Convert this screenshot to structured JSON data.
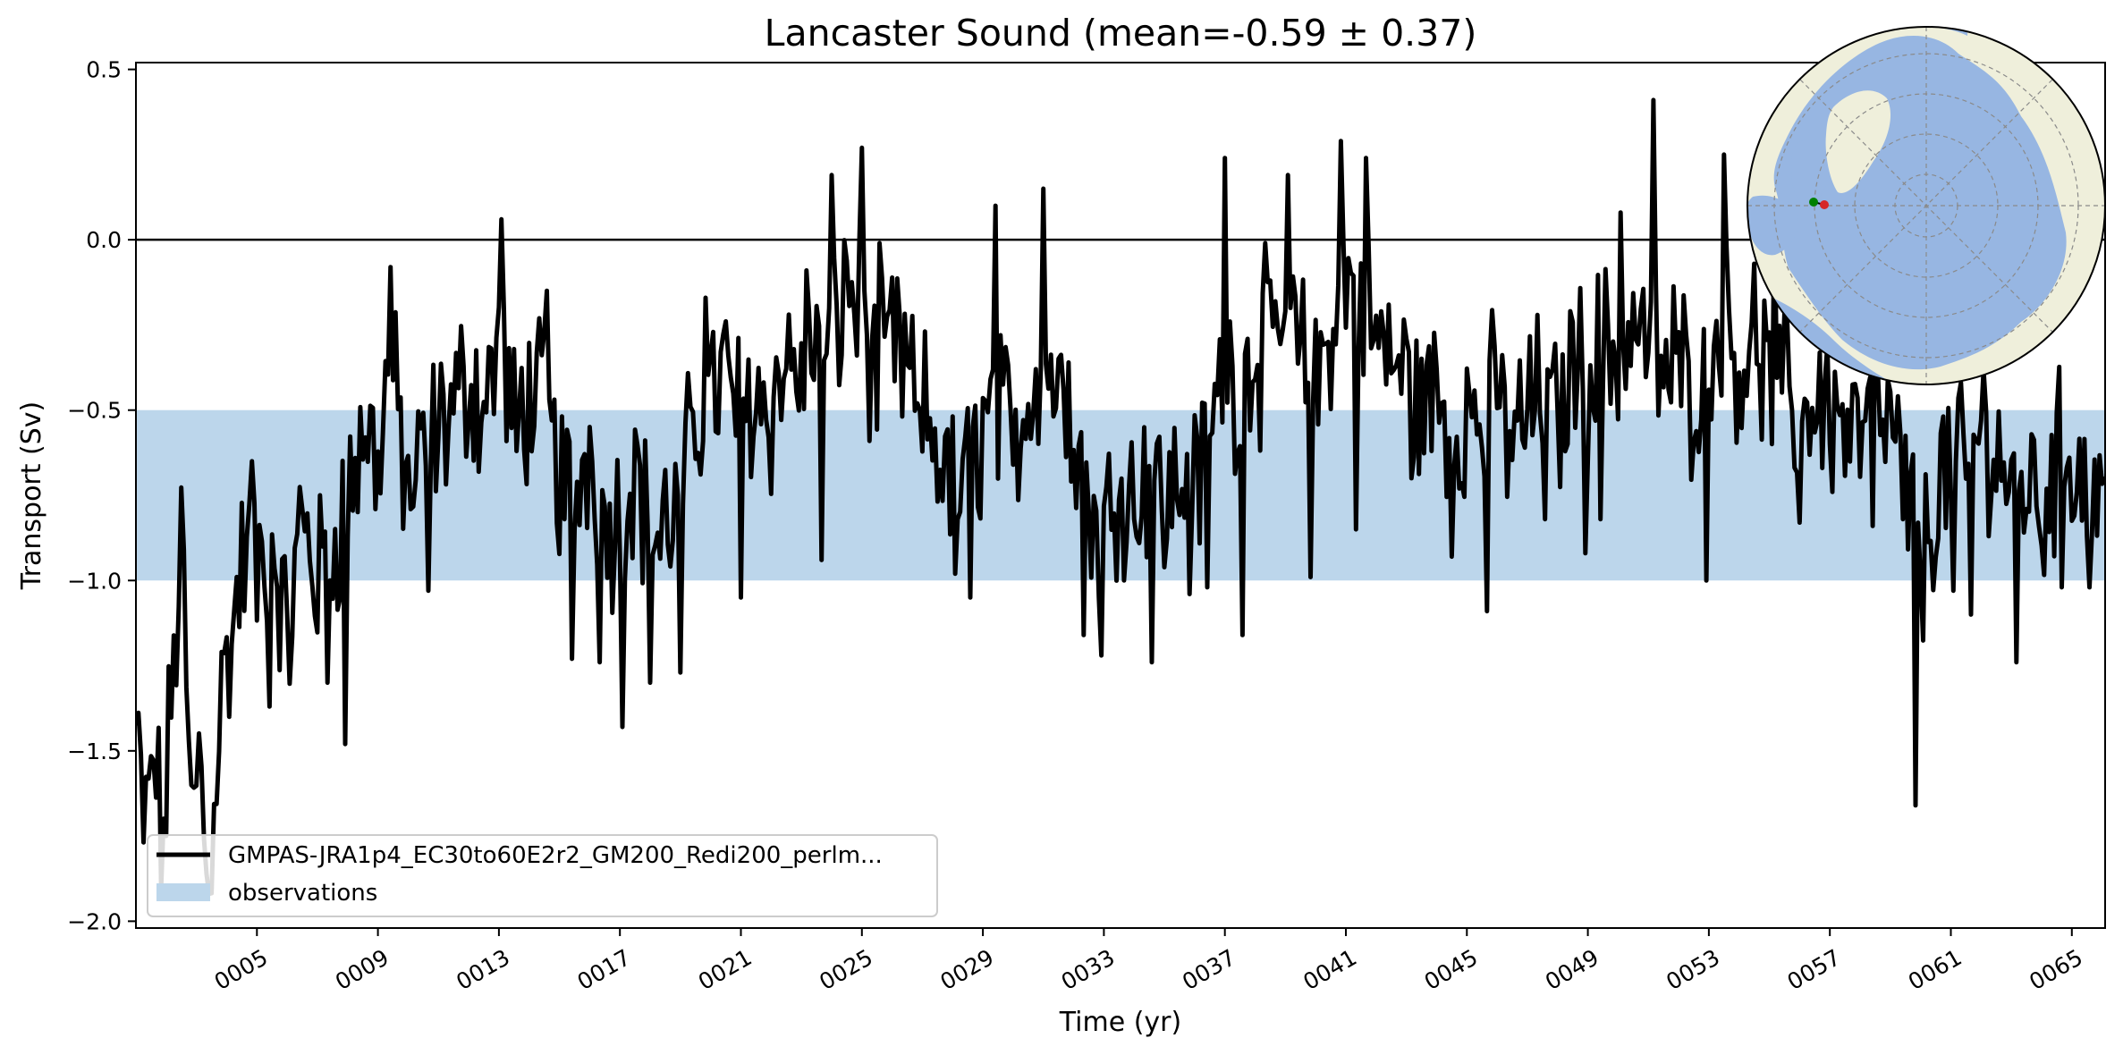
{
  "chart_data": {
    "type": "line",
    "title": "Lancaster Sound (mean=-0.59 ± 0.37)",
    "xlabel": "Time (yr)",
    "ylabel": "Transport (Sv)",
    "xlim": [
      1,
      66.1
    ],
    "ylim": [
      -2.02,
      0.52
    ],
    "x_tick_values": [
      5,
      9,
      13,
      17,
      21,
      25,
      29,
      33,
      37,
      41,
      45,
      49,
      53,
      57,
      61,
      65
    ],
    "x_tick_labels": [
      "0005",
      "0009",
      "0013",
      "0017",
      "0021",
      "0025",
      "0029",
      "0033",
      "0037",
      "0041",
      "0045",
      "0049",
      "0053",
      "0057",
      "0061",
      "0065"
    ],
    "y_ticks": [
      0.5,
      0.0,
      -0.5,
      -1.0,
      -1.5,
      -2.0
    ],
    "y_tick_labels": [
      "0.5",
      "0.0",
      "−0.5",
      "−1.0",
      "−1.5",
      "−2.0"
    ],
    "zero_line": 0.0,
    "observations_band": [
      -1.0,
      -0.5
    ],
    "legend_position": "lower-left",
    "series": [
      {
        "name": "GMPAS-JRA1p4_EC30to60E2r2_GM200_Redi200_perlm...",
        "color": "#000000",
        "anchors": [
          [
            1.0,
            -1.45
          ],
          [
            1.3,
            -1.75
          ],
          [
            1.6,
            -1.5
          ],
          [
            1.9,
            -1.8
          ],
          [
            2.2,
            -1.3
          ],
          [
            2.5,
            -0.92
          ],
          [
            2.8,
            -1.7
          ],
          [
            3.1,
            -1.5
          ],
          [
            3.4,
            -1.88
          ],
          [
            3.8,
            -1.35
          ],
          [
            4.2,
            -1.15
          ],
          [
            4.6,
            -0.9
          ],
          [
            5.0,
            -1.0
          ],
          [
            5.5,
            -0.85
          ],
          [
            6.0,
            -1.2
          ],
          [
            6.5,
            -0.8
          ],
          [
            7.0,
            -1.0
          ],
          [
            7.5,
            -0.9
          ],
          [
            8.0,
            -0.75
          ],
          [
            8.6,
            -0.55
          ],
          [
            9.0,
            -0.65
          ],
          [
            9.4,
            -0.35
          ],
          [
            10.0,
            -0.75
          ],
          [
            10.5,
            -0.65
          ],
          [
            11.0,
            -0.55
          ],
          [
            11.5,
            -0.5
          ],
          [
            12.0,
            -0.4
          ],
          [
            12.5,
            -0.5
          ],
          [
            13.0,
            -0.3
          ],
          [
            13.5,
            -0.55
          ],
          [
            14.0,
            -0.45
          ],
          [
            14.5,
            -0.5
          ],
          [
            15.0,
            -0.7
          ],
          [
            15.5,
            -0.75
          ],
          [
            16.0,
            -0.6
          ],
          [
            16.5,
            -0.85
          ],
          [
            17.0,
            -0.8
          ],
          [
            17.5,
            -0.65
          ],
          [
            18.0,
            -0.9
          ],
          [
            18.5,
            -0.85
          ],
          [
            19.0,
            -0.75
          ],
          [
            19.5,
            -0.55
          ],
          [
            20.0,
            -0.45
          ],
          [
            20.5,
            -0.4
          ],
          [
            21.0,
            -0.5
          ],
          [
            21.5,
            -0.45
          ],
          [
            22.0,
            -0.5
          ],
          [
            22.5,
            -0.35
          ],
          [
            23.0,
            -0.4
          ],
          [
            23.5,
            -0.25
          ],
          [
            24.0,
            -0.35
          ],
          [
            24.5,
            -0.1
          ],
          [
            25.0,
            -0.25
          ],
          [
            25.5,
            -0.45
          ],
          [
            26.0,
            -0.3
          ],
          [
            26.5,
            -0.4
          ],
          [
            27.0,
            -0.5
          ],
          [
            27.5,
            -0.6
          ],
          [
            28.0,
            -0.75
          ],
          [
            28.5,
            -0.7
          ],
          [
            29.0,
            -0.55
          ],
          [
            29.5,
            -0.5
          ],
          [
            30.0,
            -0.6
          ],
          [
            30.5,
            -0.45
          ],
          [
            31.0,
            -0.3
          ],
          [
            31.5,
            -0.45
          ],
          [
            32.0,
            -0.5
          ],
          [
            32.5,
            -0.8
          ],
          [
            33.0,
            -0.85
          ],
          [
            33.5,
            -0.7
          ],
          [
            34.0,
            -0.75
          ],
          [
            34.5,
            -0.65
          ],
          [
            35.0,
            -0.8
          ],
          [
            35.5,
            -0.7
          ],
          [
            36.0,
            -0.75
          ],
          [
            36.5,
            -0.6
          ],
          [
            37.0,
            -0.35
          ],
          [
            37.5,
            -0.45
          ],
          [
            38.0,
            -0.3
          ],
          [
            38.5,
            -0.4
          ],
          [
            39.0,
            -0.2
          ],
          [
            39.5,
            -0.35
          ],
          [
            40.0,
            -0.45
          ],
          [
            40.5,
            -0.25
          ],
          [
            41.0,
            -0.1
          ],
          [
            41.5,
            -0.2
          ],
          [
            42.0,
            -0.3
          ],
          [
            42.5,
            -0.35
          ],
          [
            43.0,
            -0.4
          ],
          [
            43.5,
            -0.5
          ],
          [
            44.0,
            -0.45
          ],
          [
            44.5,
            -0.55
          ],
          [
            45.0,
            -0.5
          ],
          [
            45.5,
            -0.55
          ],
          [
            46.0,
            -0.45
          ],
          [
            46.5,
            -0.6
          ],
          [
            47.0,
            -0.5
          ],
          [
            47.5,
            -0.45
          ],
          [
            48.0,
            -0.55
          ],
          [
            48.5,
            -0.35
          ],
          [
            49.0,
            -0.4
          ],
          [
            49.5,
            -0.3
          ],
          [
            50.0,
            -0.35
          ],
          [
            50.5,
            -0.25
          ],
          [
            51.0,
            -0.3
          ],
          [
            51.5,
            -0.4
          ],
          [
            52.0,
            -0.35
          ],
          [
            52.5,
            -0.45
          ],
          [
            53.0,
            -0.3
          ],
          [
            53.5,
            -0.25
          ],
          [
            54.0,
            -0.35
          ],
          [
            54.5,
            -0.3
          ],
          [
            55.0,
            -0.4
          ],
          [
            55.5,
            -0.45
          ],
          [
            56.0,
            -0.55
          ],
          [
            56.5,
            -0.45
          ],
          [
            57.0,
            -0.5
          ],
          [
            57.5,
            -0.55
          ],
          [
            58.0,
            -0.6
          ],
          [
            58.5,
            -0.5
          ],
          [
            59.0,
            -0.55
          ],
          [
            59.5,
            -0.7
          ],
          [
            60.0,
            -1.0
          ],
          [
            60.5,
            -0.75
          ],
          [
            61.0,
            -0.65
          ],
          [
            61.5,
            -0.7
          ],
          [
            62.0,
            -0.55
          ],
          [
            62.5,
            -0.6
          ],
          [
            63.0,
            -0.75
          ],
          [
            63.5,
            -0.7
          ],
          [
            64.0,
            -0.8
          ],
          [
            64.5,
            -0.65
          ],
          [
            65.0,
            -0.6
          ],
          [
            65.5,
            -0.75
          ],
          [
            66.1,
            -0.7
          ]
        ],
        "spikes": [
          [
            2.6,
            -0.91
          ],
          [
            3.3,
            -1.86
          ],
          [
            4.8,
            -0.65
          ],
          [
            5.4,
            -1.37
          ],
          [
            7.3,
            -1.3
          ],
          [
            7.9,
            -1.48
          ],
          [
            9.4,
            -0.08
          ],
          [
            10.7,
            -1.03
          ],
          [
            13.1,
            0.06
          ],
          [
            13.6,
            -0.62
          ],
          [
            14.6,
            -0.15
          ],
          [
            15.4,
            -1.23
          ],
          [
            16.3,
            -1.24
          ],
          [
            17.1,
            -1.43
          ],
          [
            18.0,
            -1.3
          ],
          [
            19.0,
            -1.27
          ],
          [
            19.8,
            -0.17
          ],
          [
            21.0,
            -1.05
          ],
          [
            23.2,
            -0.09
          ],
          [
            23.7,
            -0.94
          ],
          [
            24.0,
            0.19
          ],
          [
            25.0,
            0.27
          ],
          [
            25.6,
            -0.01
          ],
          [
            26.8,
            -0.48
          ],
          [
            28.1,
            -0.98
          ],
          [
            28.6,
            -1.05
          ],
          [
            29.4,
            0.1
          ],
          [
            30.0,
            -0.66
          ],
          [
            31.0,
            0.15
          ],
          [
            31.8,
            -0.36
          ],
          [
            32.3,
            -1.16
          ],
          [
            32.9,
            -1.22
          ],
          [
            34.0,
            -0.82
          ],
          [
            34.6,
            -1.24
          ],
          [
            35.8,
            -1.04
          ],
          [
            36.4,
            -1.02
          ],
          [
            37.0,
            0.24
          ],
          [
            37.6,
            -1.16
          ],
          [
            38.3,
            -0.01
          ],
          [
            39.1,
            0.19
          ],
          [
            39.8,
            -0.99
          ],
          [
            40.8,
            0.29
          ],
          [
            41.3,
            -0.85
          ],
          [
            41.7,
            0.24
          ],
          [
            43.2,
            -0.7
          ],
          [
            44.5,
            -0.93
          ],
          [
            45.7,
            -1.09
          ],
          [
            47.6,
            -0.82
          ],
          [
            48.9,
            -0.92
          ],
          [
            49.4,
            -0.82
          ],
          [
            50.1,
            0.08
          ],
          [
            51.2,
            0.41
          ],
          [
            52.9,
            -1.0
          ],
          [
            53.5,
            0.25
          ],
          [
            55.2,
            0.08
          ],
          [
            56.0,
            -0.83
          ],
          [
            58.4,
            -0.84
          ],
          [
            59.4,
            -0.82
          ],
          [
            59.8,
            -1.66
          ],
          [
            61.1,
            -1.03
          ],
          [
            61.7,
            -1.1
          ],
          [
            63.2,
            -1.24
          ],
          [
            64.7,
            -1.02
          ],
          [
            65.6,
            -1.02
          ]
        ]
      }
    ],
    "legend": [
      {
        "label": "GMPAS-JRA1p4_EC30to60E2r2_GM200_Redi200_perlm...",
        "kind": "line",
        "color": "#000000"
      },
      {
        "label": "observations",
        "kind": "patch",
        "color": "#bcd6eb"
      }
    ],
    "inset_map": {
      "description": "north-polar-stereographic-map",
      "ocean_color": "#97b6e2",
      "land_color": "#efefdb",
      "markers": [
        {
          "label": "start",
          "color": "#008000"
        },
        {
          "label": "end",
          "color": "#d62728"
        }
      ]
    }
  }
}
